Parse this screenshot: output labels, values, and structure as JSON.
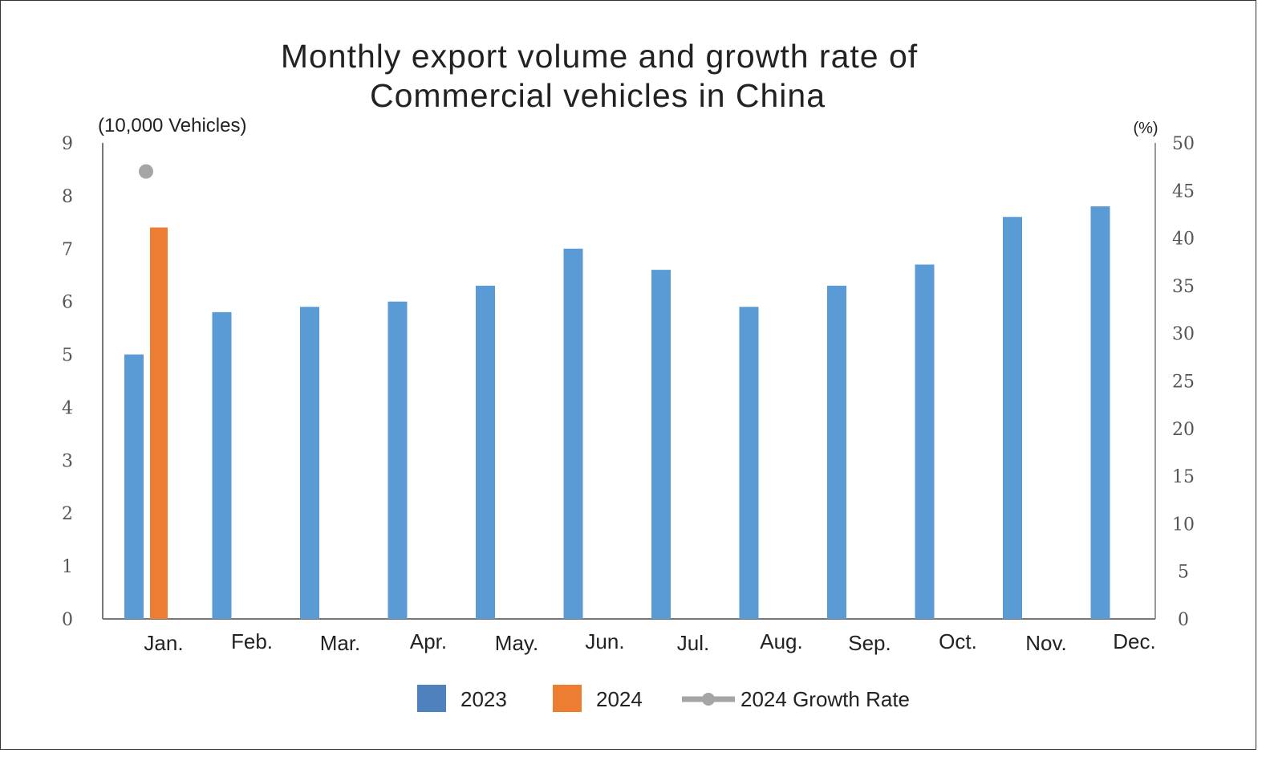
{
  "chart_data": {
    "type": "bar",
    "title": "Monthly export volume and growth rate of Commercial vehicles in China",
    "title_lines": [
      "Monthly export volume and growth rate of",
      "Commercial vehicles in China"
    ],
    "ylabel": "(10,000 Vehicles)",
    "y2label": "(%)",
    "ylim": [
      0,
      9
    ],
    "y2lim": [
      0,
      50
    ],
    "yticks": [
      0,
      1,
      2,
      3,
      4,
      5,
      6,
      7,
      8,
      9
    ],
    "y2ticks": [
      0,
      5,
      10,
      15,
      20,
      25,
      30,
      35,
      40,
      45,
      50
    ],
    "grid": false,
    "legend_position": "bottom",
    "categories": [
      "Jan.",
      "Feb.",
      "Mar.",
      "Apr.",
      "May.",
      "Jun.",
      "Jul.",
      "Aug.",
      "Sep.",
      "Oct.",
      "Nov.",
      "Dec."
    ],
    "series": [
      {
        "name": "2023",
        "type": "bar",
        "axis": "left",
        "color": "#5b9bd5",
        "values": [
          5.0,
          5.8,
          5.9,
          6.0,
          6.3,
          7.0,
          6.6,
          5.9,
          6.3,
          6.7,
          7.6,
          7.8
        ]
      },
      {
        "name": "2024",
        "type": "bar",
        "axis": "left",
        "color": "#ed7d31",
        "values": [
          7.4,
          null,
          null,
          null,
          null,
          null,
          null,
          null,
          null,
          null,
          null,
          null
        ]
      },
      {
        "name": "2024 Growth Rate",
        "type": "line",
        "axis": "right",
        "color": "#a5a5a5",
        "values": [
          47,
          null,
          null,
          null,
          null,
          null,
          null,
          null,
          null,
          null,
          null,
          null
        ]
      }
    ]
  }
}
